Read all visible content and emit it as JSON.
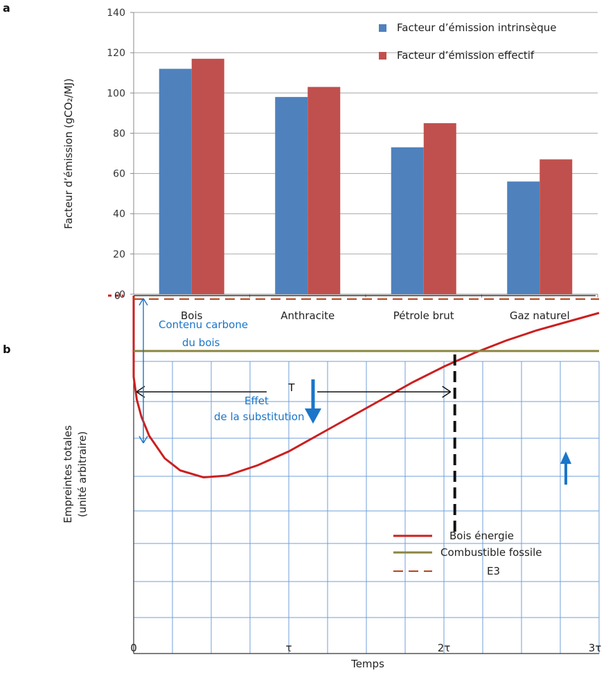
{
  "panel_a": {
    "letter": "a"
  },
  "panel_b": {
    "letter": "b"
  },
  "colors": {
    "intrinsic": "#4f81bd",
    "effective": "#c0504d",
    "wood": "#cc1f1f",
    "fossil": "#8a8540",
    "e3": "#b5451b",
    "blue_annotation": "#1a75c9",
    "grid_b": "#6f9fd8"
  },
  "chart_data": [
    {
      "type": "bar",
      "title": "",
      "xlabel": "",
      "ylabel": "Facteur d’émission (gCO₂/MJ)",
      "categories": [
        "Bois",
        "Anthracite",
        "Pétrole brut",
        "Gaz naturel"
      ],
      "series": [
        {
          "name": "Facteur d’émission intrinsèque",
          "values": [
            112,
            98,
            73,
            56
          ]
        },
        {
          "name": "Facteur d’émission effectif",
          "values": [
            117,
            103,
            85,
            67
          ]
        }
      ],
      "ylim": [
        0,
        140
      ],
      "yticks": [
        "0",
        "20",
        "40",
        "60",
        "80",
        "100",
        "120",
        "140"
      ],
      "grid": true,
      "legend": "top-right"
    },
    {
      "type": "line",
      "title": "",
      "xlabel": "Temps",
      "ylabel": "Empreintes totales",
      "ylabel_sub": "(unité arbitraire)",
      "xticks": [
        "0",
        "τ",
        "2τ",
        "3τ"
      ],
      "ytick_zero": "0",
      "xlim": [
        0,
        3
      ],
      "ylim": [
        -1.6,
        0.25
      ],
      "grid": true,
      "legend": "bottom-right",
      "series": [
        {
          "name": "Bois énergie",
          "style": "solid",
          "x": [
            0,
            0.02,
            0.05,
            0.1,
            0.2,
            0.3,
            0.45,
            0.6,
            0.8,
            1.0,
            1.2,
            1.4,
            1.6,
            1.8,
            2.0,
            2.2,
            2.4,
            2.6,
            2.8,
            3.0
          ],
          "y": [
            -0.47,
            -0.6,
            -0.7,
            -0.81,
            -0.94,
            -1.01,
            -1.05,
            -1.04,
            -0.98,
            -0.9,
            -0.8,
            -0.7,
            -0.6,
            -0.5,
            -0.41,
            -0.33,
            -0.26,
            -0.2,
            -0.15,
            -0.1
          ]
        },
        {
          "name": "Combustible fossile",
          "style": "solid",
          "x": [
            0,
            3
          ],
          "y": [
            -0.32,
            -0.32
          ]
        },
        {
          "name": "E3",
          "style": "dashed",
          "x": [
            0,
            3
          ],
          "y": [
            -0.02,
            -0.02
          ]
        }
      ],
      "annotations": {
        "period_label": "T",
        "carbon_content": [
          "Contenu carbone",
          "du bois"
        ],
        "substitution": [
          "Effet",
          "de la substitution"
        ]
      }
    }
  ]
}
